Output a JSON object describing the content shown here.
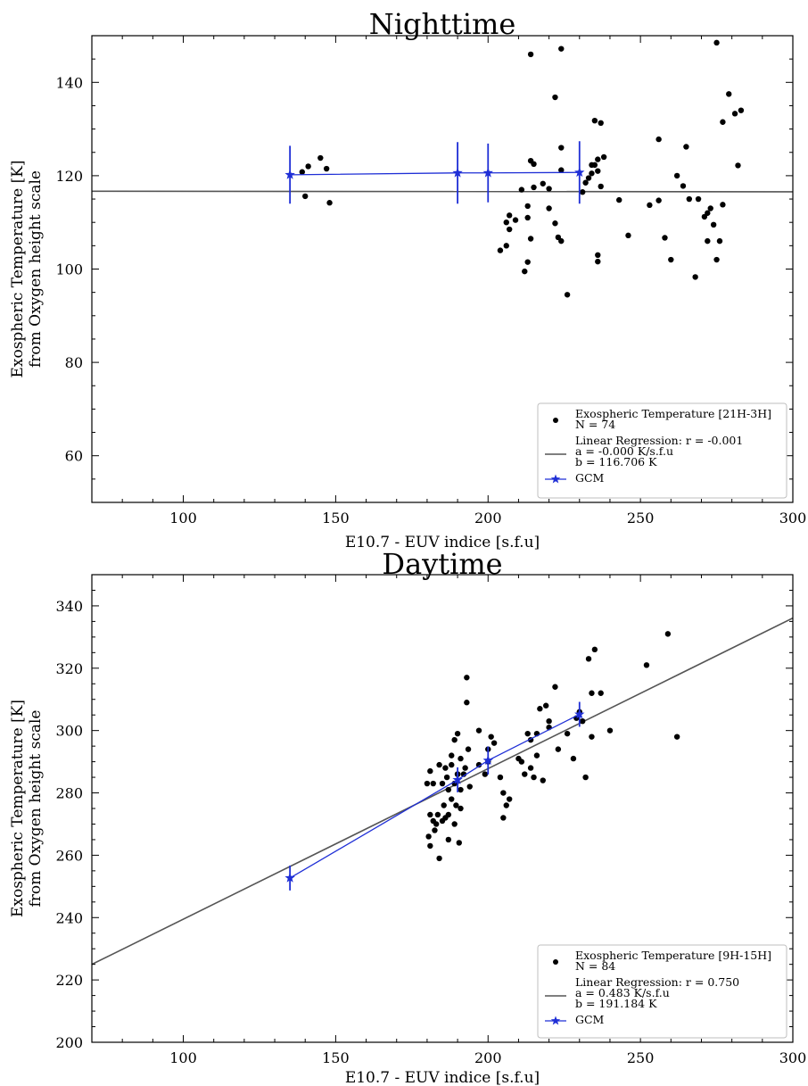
{
  "chart_data": [
    {
      "type": "scatter",
      "title": "Nighttime",
      "xlabel": "E10.7 - EUV indice [s.f.u]",
      "ylabel": [
        "Exospheric Temperature [K]",
        "from Oxygen height scale"
      ],
      "xlim": [
        70,
        300
      ],
      "ylim": [
        50,
        150
      ],
      "xticks": [
        100,
        150,
        200,
        250,
        300
      ],
      "yticks": [
        60,
        80,
        100,
        120,
        140
      ],
      "grid": false,
      "legend_position": "lower-right",
      "series": [
        {
          "kind": "scatter",
          "color": "#000000",
          "legend": [
            "Exospheric Temperature [21H-3H]",
            "N = 74"
          ],
          "points": [
            [
              139,
              120.8
            ],
            [
              141,
              122
            ],
            [
              140,
              115.6
            ],
            [
              145,
              123.8
            ],
            [
              147,
              121.5
            ],
            [
              148,
              114.2
            ],
            [
              204,
              104
            ],
            [
              206,
              105
            ],
            [
              206,
              110
            ],
            [
              207,
              111.5
            ],
            [
              207,
              108.5
            ],
            [
              209,
              110.5
            ],
            [
              211,
              117
            ],
            [
              212,
              99.5
            ],
            [
              213,
              113.5
            ],
            [
              213,
              111
            ],
            [
              214,
              106.5
            ],
            [
              213,
              101.5
            ],
            [
              214,
              146
            ],
            [
              214,
              123.2
            ],
            [
              215,
              122.5
            ],
            [
              215,
              117.5
            ],
            [
              218,
              118.3
            ],
            [
              220,
              113
            ],
            [
              220,
              117.2
            ],
            [
              222,
              109.8
            ],
            [
              222,
              136.8
            ],
            [
              223,
              106.8
            ],
            [
              224,
              106
            ],
            [
              224,
              126
            ],
            [
              224,
              121.2
            ],
            [
              224,
              147.2
            ],
            [
              226,
              94.5
            ],
            [
              231,
              116.5
            ],
            [
              232,
              118.5
            ],
            [
              233,
              119.5
            ],
            [
              234,
              122.3
            ],
            [
              234,
              120.5
            ],
            [
              235,
              131.8
            ],
            [
              235,
              122.3
            ],
            [
              236,
              121
            ],
            [
              236,
              123.5
            ],
            [
              236,
              103
            ],
            [
              236,
              101.6
            ],
            [
              237,
              131.3
            ],
            [
              237,
              117.7
            ],
            [
              238,
              124
            ],
            [
              243,
              114.8
            ],
            [
              246,
              107.2
            ],
            [
              253,
              113.7
            ],
            [
              256,
              114.7
            ],
            [
              256,
              127.8
            ],
            [
              258,
              106.7
            ],
            [
              260,
              102
            ],
            [
              262,
              120
            ],
            [
              264,
              117.8
            ],
            [
              265,
              126.2
            ],
            [
              266,
              115
            ],
            [
              268,
              98.3
            ],
            [
              269,
              115
            ],
            [
              271,
              111.2
            ],
            [
              272,
              112
            ],
            [
              272,
              106
            ],
            [
              273,
              113
            ],
            [
              274,
              109.5
            ],
            [
              275,
              148.5
            ],
            [
              275,
              102
            ],
            [
              276,
              106
            ],
            [
              277,
              113.8
            ],
            [
              277,
              131.5
            ],
            [
              279,
              137.5
            ],
            [
              281,
              133.3
            ],
            [
              282,
              122.2
            ],
            [
              283,
              134
            ]
          ]
        },
        {
          "kind": "regression",
          "color": "#555555",
          "legend": [
            "Linear Regression: r = -0.001",
            " a = -0.000 K/s.f.u",
            " b = 116.706 K"
          ],
          "a": -0.0005,
          "b": 116.706
        },
        {
          "kind": "line-errorbar",
          "color": "#1f2fd6",
          "legend": [
            "GCM"
          ],
          "points": [
            {
              "x": 135,
              "y": 120.2,
              "err": 6.2
            },
            {
              "x": 190,
              "y": 120.6,
              "err": 6.6
            },
            {
              "x": 200,
              "y": 120.6,
              "err": 6.3
            },
            {
              "x": 230,
              "y": 120.7,
              "err": 6.7
            }
          ]
        }
      ]
    },
    {
      "type": "scatter",
      "title": "Daytime",
      "xlabel": "E10.7 - EUV indice [s.f.u]",
      "ylabel": [
        "Exospheric Temperature [K]",
        "from Oxygen height scale"
      ],
      "xlim": [
        70,
        300
      ],
      "ylim": [
        200,
        350
      ],
      "xticks": [
        100,
        150,
        200,
        250,
        300
      ],
      "yticks": [
        200,
        220,
        240,
        260,
        280,
        300,
        320,
        340
      ],
      "grid": false,
      "legend_position": "lower-right",
      "series": [
        {
          "kind": "scatter",
          "color": "#000000",
          "legend": [
            "Exospheric Temperature [9H-15H]",
            "N = 84"
          ],
          "points": [
            [
              180,
              283
            ],
            [
              180.5,
              266
            ],
            [
              181,
              287
            ],
            [
              181,
              273
            ],
            [
              181,
              263
            ],
            [
              182,
              271
            ],
            [
              182,
              283
            ],
            [
              182.5,
              268
            ],
            [
              183,
              270
            ],
            [
              183.5,
              273
            ],
            [
              184,
              289
            ],
            [
              184,
              259
            ],
            [
              185,
              271
            ],
            [
              185,
              283
            ],
            [
              185.5,
              276
            ],
            [
              186,
              288
            ],
            [
              186,
              272
            ],
            [
              186.5,
              285
            ],
            [
              187,
              281
            ],
            [
              187,
              265
            ],
            [
              187,
              273
            ],
            [
              188,
              289
            ],
            [
              188,
              278
            ],
            [
              188,
              292
            ],
            [
              189,
              297
            ],
            [
              189,
              283
            ],
            [
              189,
              270
            ],
            [
              189.5,
              276
            ],
            [
              190,
              299
            ],
            [
              190,
              286
            ],
            [
              190,
              286
            ],
            [
              190.5,
              264
            ],
            [
              191,
              275
            ],
            [
              191,
              281
            ],
            [
              191,
              291
            ],
            [
              192,
              286
            ],
            [
              192.5,
              288
            ],
            [
              193,
              317
            ],
            [
              193,
              309
            ],
            [
              193.5,
              294
            ],
            [
              194,
              282
            ],
            [
              197,
              289
            ],
            [
              197,
              300
            ],
            [
              199,
              286
            ],
            [
              200,
              294
            ],
            [
              200,
              290
            ],
            [
              201,
              298
            ],
            [
              202,
              296
            ],
            [
              204,
              285
            ],
            [
              205,
              272
            ],
            [
              205,
              280
            ],
            [
              206,
              276
            ],
            [
              207,
              278
            ],
            [
              210,
              291
            ],
            [
              211,
              290
            ],
            [
              212,
              286
            ],
            [
              213,
              299
            ],
            [
              214,
              297
            ],
            [
              214,
              288
            ],
            [
              215,
              285
            ],
            [
              216,
              292
            ],
            [
              216,
              299
            ],
            [
              217,
              307
            ],
            [
              218,
              284
            ],
            [
              219,
              308
            ],
            [
              220,
              301
            ],
            [
              220,
              303
            ],
            [
              222,
              314
            ],
            [
              223,
              294
            ],
            [
              226,
              299
            ],
            [
              228,
              291
            ],
            [
              229,
              304
            ],
            [
              230,
              306
            ],
            [
              231,
              303
            ],
            [
              232,
              285
            ],
            [
              233,
              323
            ],
            [
              234,
              298
            ],
            [
              234,
              312
            ],
            [
              235,
              326
            ],
            [
              237,
              312
            ],
            [
              240,
              300
            ],
            [
              252,
              321
            ],
            [
              259,
              331
            ],
            [
              262,
              298
            ]
          ]
        },
        {
          "kind": "regression",
          "color": "#555555",
          "legend": [
            "Linear Regression: r = 0.750",
            " a = 0.483 K/s.f.u",
            " b = 191.184 K"
          ],
          "a": 0.483,
          "b": 191.184
        },
        {
          "kind": "line-errorbar",
          "color": "#1f2fd6",
          "legend": [
            "GCM"
          ],
          "points": [
            {
              "x": 135,
              "y": 252.7,
              "err": 4
            },
            {
              "x": 190,
              "y": 284.2,
              "err": 4
            },
            {
              "x": 200,
              "y": 290.4,
              "err": 4.5
            },
            {
              "x": 230,
              "y": 305.2,
              "err": 4
            }
          ]
        }
      ]
    }
  ]
}
